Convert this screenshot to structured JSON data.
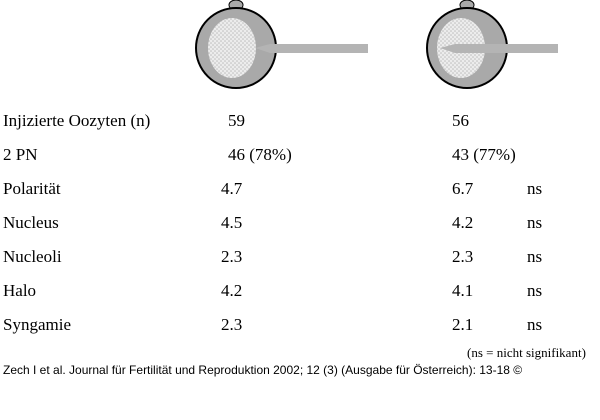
{
  "rows": [
    {
      "label": "Injizierte Oozyten (n)",
      "left": "59",
      "right": "56",
      "sig": ""
    },
    {
      "label": "2 PN",
      "left": "46 (78%)",
      "right": "43 (77%)",
      "sig": ""
    },
    {
      "label": "Polarität",
      "left": "4.7",
      "right": "6.7",
      "sig": "ns"
    },
    {
      "label": "Nucleus",
      "left": "4.5",
      "right": "4.2",
      "sig": "ns"
    },
    {
      "label": "Nucleoli",
      "left": "2.3",
      "right": "2.3",
      "sig": "ns"
    },
    {
      "label": "Halo",
      "left": "4.2",
      "right": "4.1",
      "sig": "ns"
    },
    {
      "label": "Syngamie",
      "left": "2.3",
      "right": "2.1",
      "sig": "ns"
    }
  ],
  "note": "(ns = nicht signifikant)",
  "citation": "Zech I et al. Journal für Fertilität und Reproduktion 2002; 12 (3) (Ausgabe für Österreich): 13-18 ©",
  "colors": {
    "cell": "#a9a9a9",
    "nucleus": "#e6e6e6",
    "pipette": "#b4b4b4",
    "outline": "#000000"
  }
}
